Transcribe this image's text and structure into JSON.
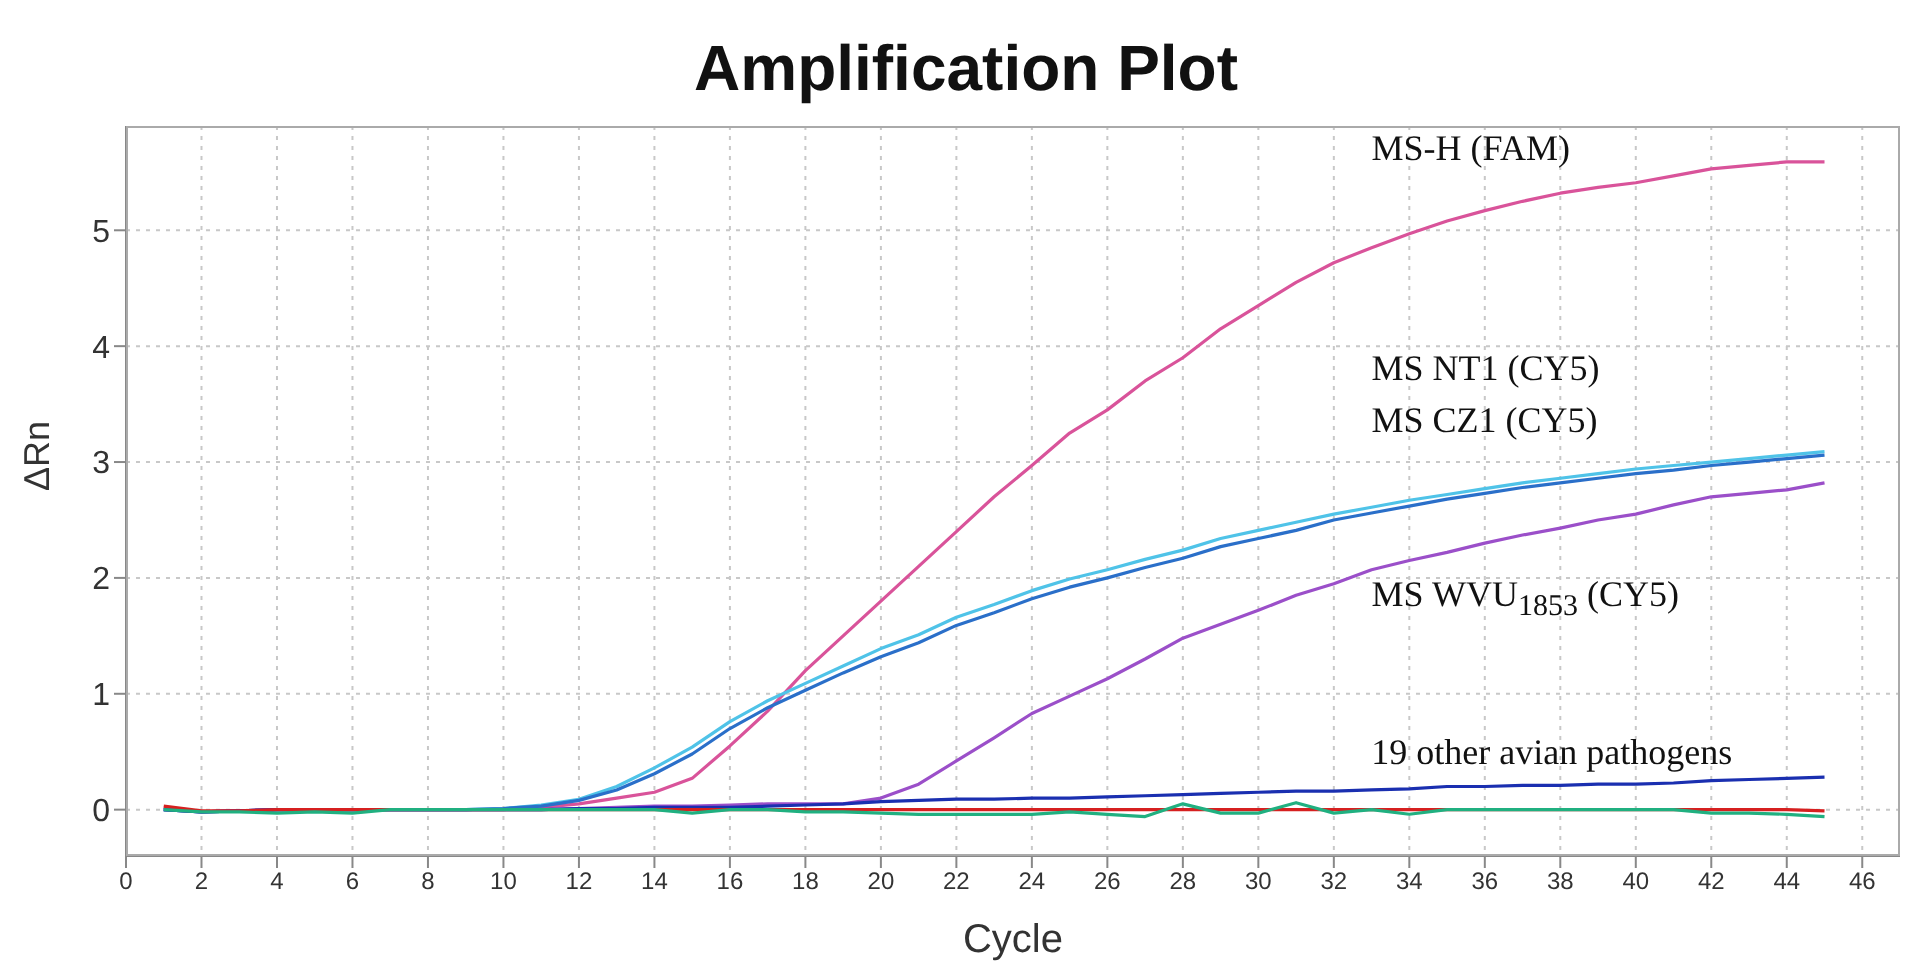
{
  "chart_data": {
    "type": "line",
    "title": "Amplification Plot",
    "xlabel": "Cycle",
    "ylabel": "ΔRn",
    "x": [
      1,
      2,
      3,
      4,
      5,
      6,
      7,
      8,
      9,
      10,
      11,
      12,
      13,
      14,
      15,
      16,
      17,
      18,
      19,
      20,
      21,
      22,
      23,
      24,
      25,
      26,
      27,
      28,
      29,
      30,
      31,
      32,
      33,
      34,
      35,
      36,
      37,
      38,
      39,
      40,
      41,
      42,
      43,
      44,
      45
    ],
    "series": [
      {
        "name": "MS-H (FAM)",
        "color": "#d9539a",
        "values": [
          0.02,
          -0.02,
          -0.01,
          0,
          0,
          0,
          0,
          0,
          0,
          0,
          0.02,
          0.05,
          0.1,
          0.15,
          0.27,
          0.55,
          0.85,
          1.2,
          1.5,
          1.8,
          2.1,
          2.4,
          2.7,
          2.97,
          3.25,
          3.45,
          3.7,
          3.9,
          4.15,
          4.35,
          4.55,
          4.72,
          4.85,
          4.97,
          5.08,
          5.17,
          5.25,
          5.32,
          5.37,
          5.41,
          5.47,
          5.53,
          5.56,
          5.59,
          5.59
        ]
      },
      {
        "name": "MS NT1 (CY5)",
        "color": "#4fc3e8",
        "values": [
          0,
          -0.02,
          -0.01,
          0,
          0,
          0,
          0,
          0,
          0,
          0.01,
          0.04,
          0.09,
          0.2,
          0.36,
          0.54,
          0.76,
          0.94,
          1.09,
          1.24,
          1.39,
          1.51,
          1.66,
          1.77,
          1.89,
          1.99,
          2.07,
          2.16,
          2.24,
          2.34,
          2.41,
          2.48,
          2.55,
          2.61,
          2.67,
          2.72,
          2.77,
          2.82,
          2.86,
          2.9,
          2.94,
          2.97,
          3,
          3.03,
          3.06,
          3.09
        ]
      },
      {
        "name": "MS CZ1 (CY5)",
        "color": "#2a6fc9",
        "values": [
          0,
          -0.02,
          -0.01,
          0,
          0,
          0,
          0,
          0,
          0,
          0.01,
          0.03,
          0.08,
          0.17,
          0.31,
          0.48,
          0.7,
          0.88,
          1.03,
          1.18,
          1.32,
          1.44,
          1.59,
          1.7,
          1.82,
          1.92,
          2,
          2.09,
          2.17,
          2.27,
          2.34,
          2.41,
          2.5,
          2.56,
          2.62,
          2.68,
          2.73,
          2.78,
          2.82,
          2.86,
          2.9,
          2.93,
          2.97,
          3,
          3.03,
          3.06
        ]
      },
      {
        "name": "MS WVU$_{1853}$ (CY5)",
        "color": "#9b4fc9",
        "values": [
          0,
          -0.02,
          -0.01,
          0,
          0,
          0,
          0,
          0,
          0,
          0,
          0,
          0.01,
          0.02,
          0.03,
          0.03,
          0.04,
          0.05,
          0.05,
          0.05,
          0.1,
          0.22,
          0.42,
          0.62,
          0.83,
          0.98,
          1.13,
          1.3,
          1.48,
          1.6,
          1.72,
          1.85,
          1.95,
          2.07,
          2.15,
          2.22,
          2.3,
          2.37,
          2.43,
          2.5,
          2.55,
          2.63,
          2.7,
          2.73,
          2.76,
          2.82
        ]
      },
      {
        "color": "#1a2fb0",
        "values": [
          0,
          -0.02,
          -0.01,
          0,
          0,
          0,
          0,
          0,
          0,
          0,
          0,
          0.01,
          0.01,
          0.02,
          0.02,
          0.02,
          0.03,
          0.04,
          0.05,
          0.07,
          0.08,
          0.09,
          0.09,
          0.1,
          0.1,
          0.11,
          0.12,
          0.13,
          0.14,
          0.15,
          0.16,
          0.16,
          0.17,
          0.18,
          0.2,
          0.2,
          0.21,
          0.21,
          0.22,
          0.22,
          0.23,
          0.25,
          0.26,
          0.27,
          0.28
        ]
      },
      {
        "color": "#d62020",
        "values": [
          0.03,
          -0.01,
          -0.01,
          0,
          0,
          0,
          0,
          0,
          0,
          0,
          0,
          0,
          0,
          0,
          0,
          0,
          0,
          0,
          0,
          0,
          0,
          0,
          0,
          0,
          0,
          0,
          0,
          0,
          0,
          0,
          0,
          0,
          0,
          0,
          0,
          0,
          0,
          0,
          0,
          0,
          0,
          0,
          0,
          0,
          -0.01
        ]
      },
      {
        "color": "#20b080",
        "values": [
          0,
          -0.02,
          -0.02,
          -0.03,
          -0.02,
          -0.03,
          0,
          0,
          0,
          0,
          0,
          0,
          0,
          0,
          -0.03,
          0,
          0,
          -0.02,
          -0.02,
          -0.03,
          -0.04,
          -0.04,
          -0.04,
          -0.04,
          -0.02,
          -0.04,
          -0.06,
          0.05,
          -0.03,
          -0.03,
          0.06,
          -0.03,
          0,
          -0.04,
          0,
          0,
          0,
          0,
          0,
          0,
          0,
          -0.03,
          -0.03,
          -0.04,
          -0.06
        ]
      }
    ],
    "annotations": [
      "19 other avian pathogens"
    ],
    "xlim": [
      0,
      47
    ],
    "xticks": [
      0,
      2,
      4,
      6,
      8,
      10,
      12,
      14,
      16,
      18,
      20,
      22,
      24,
      26,
      28,
      30,
      32,
      34,
      36,
      38,
      40,
      42,
      44,
      46
    ],
    "ylim": [
      -0.4,
      5.9
    ],
    "yticks": [
      0,
      1,
      2,
      3,
      4,
      5
    ],
    "grid": true,
    "legend": false,
    "marker": "none",
    "line_style": "solid"
  }
}
